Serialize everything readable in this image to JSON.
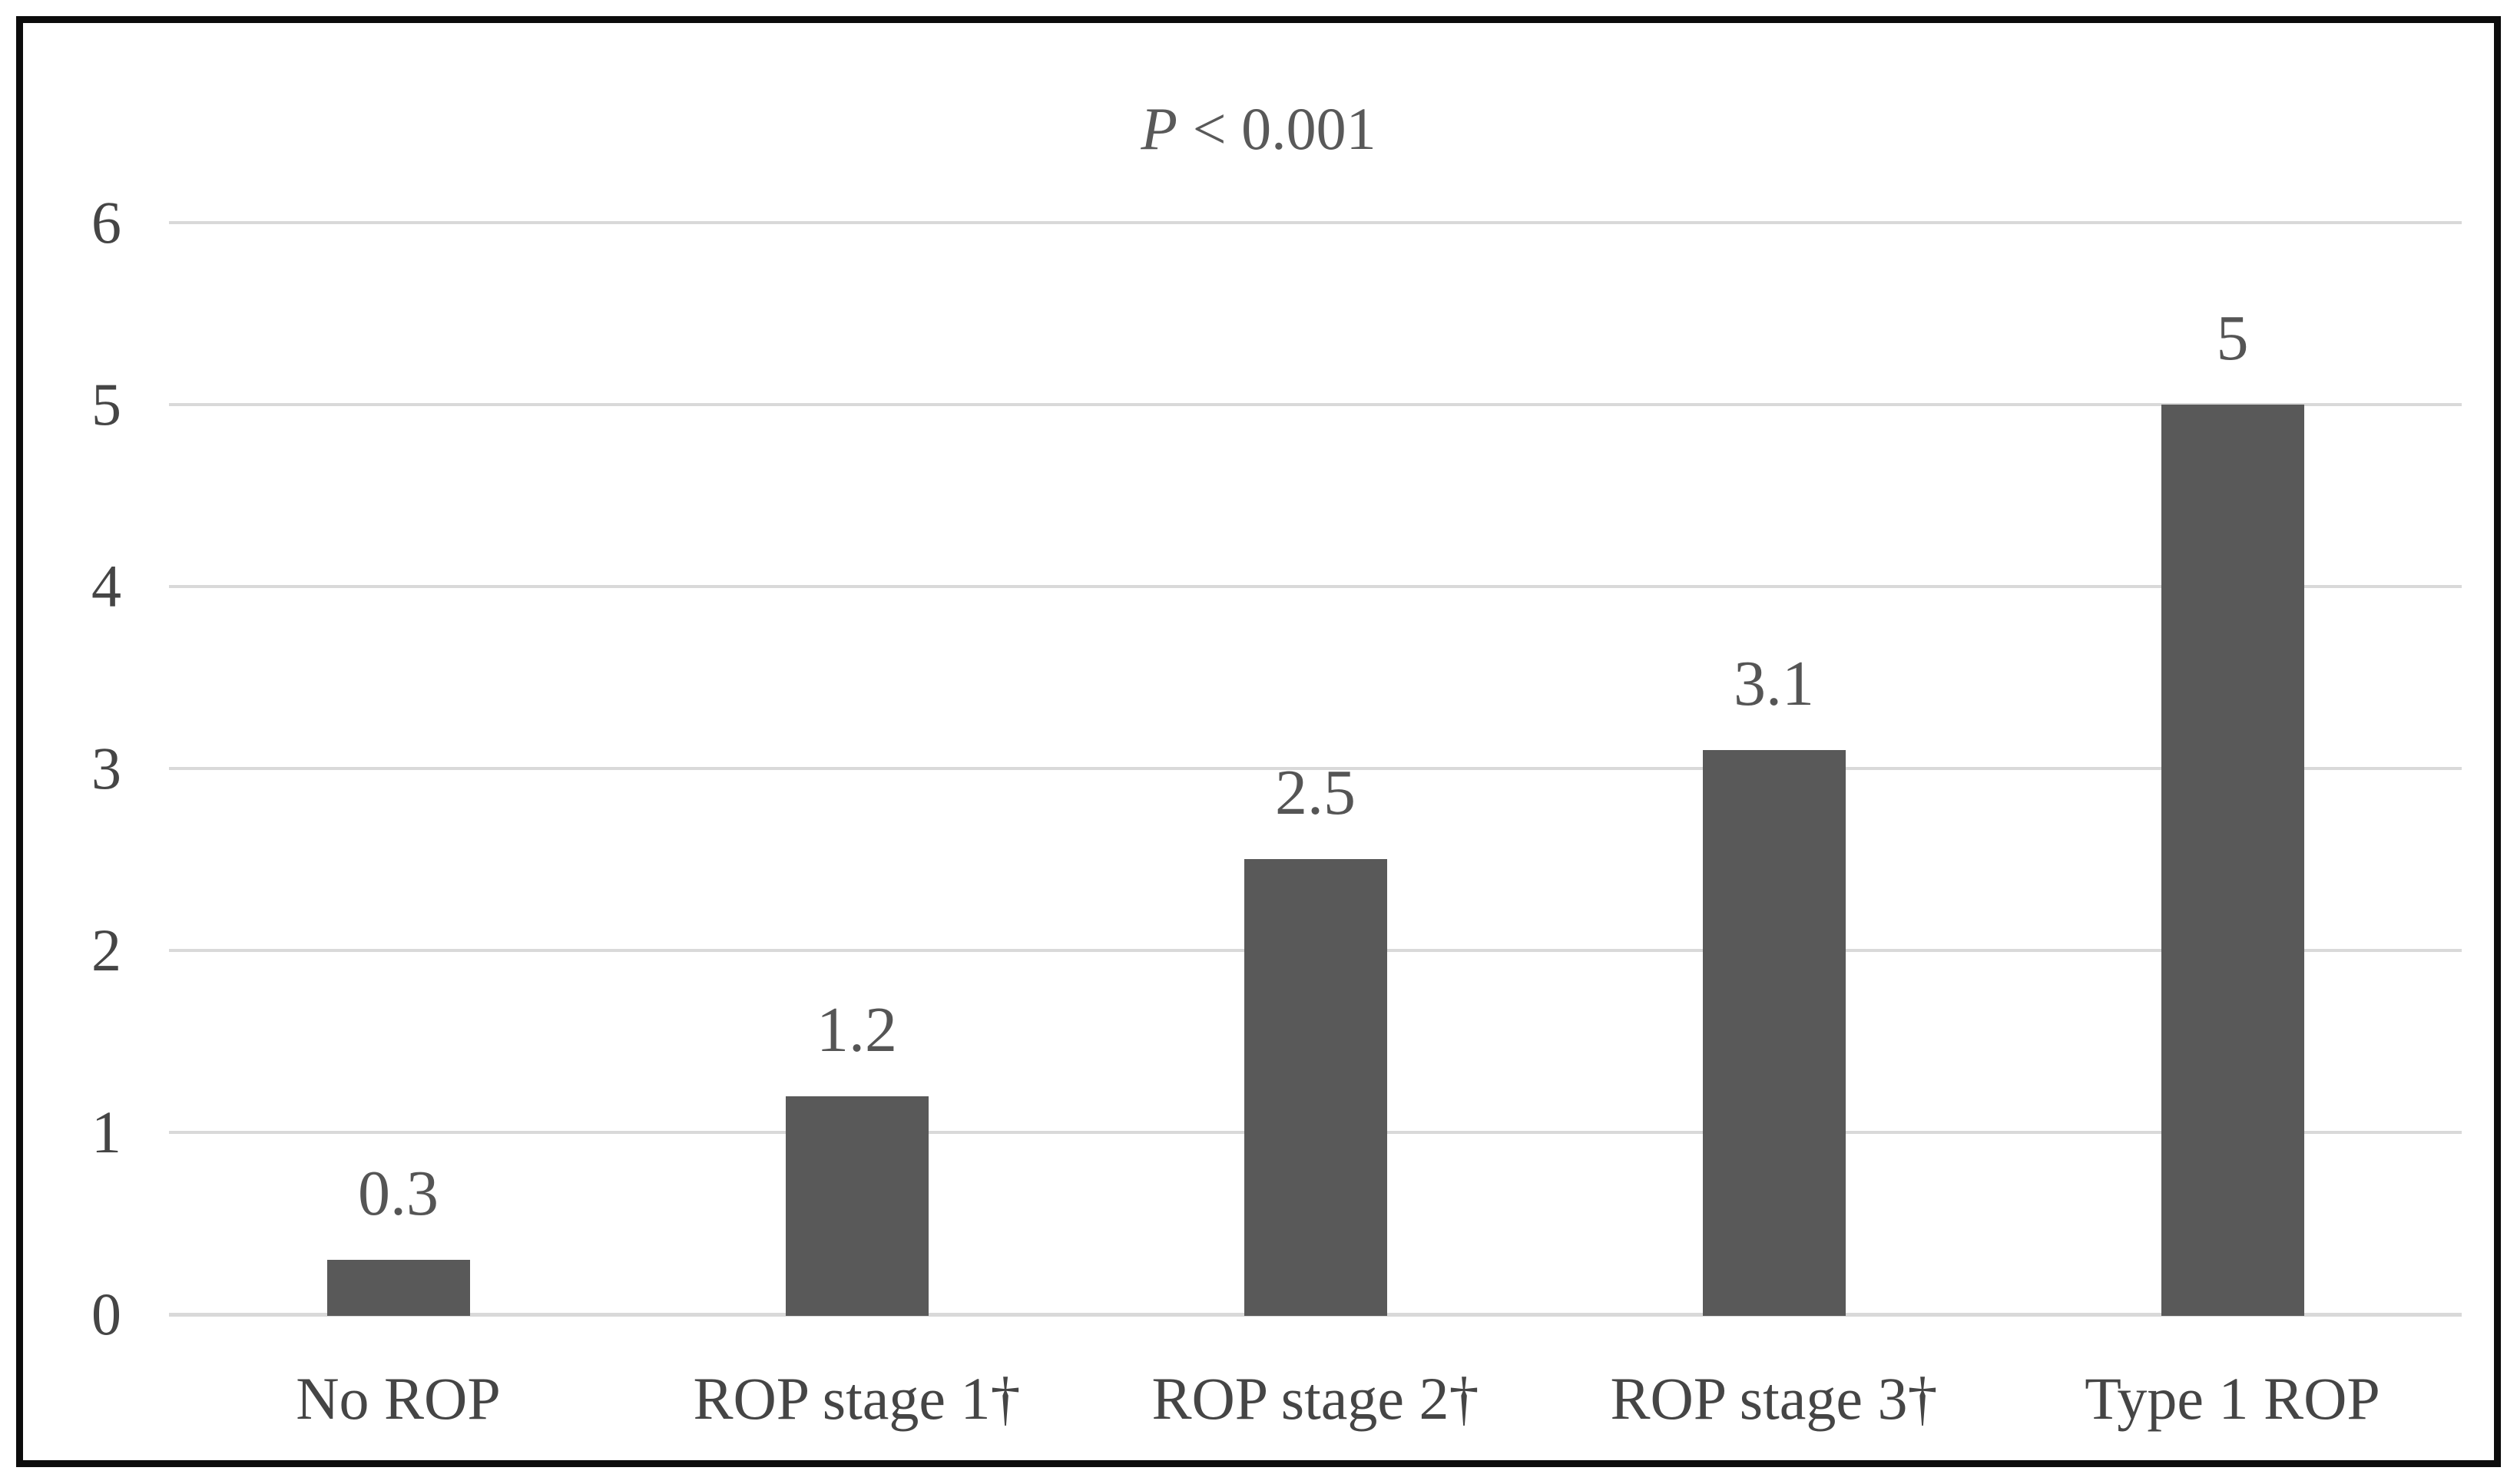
{
  "chart_data": {
    "type": "bar",
    "title": "P < 0.001",
    "title_italic": "P",
    "title_rest": " < 0.001",
    "categories": [
      "No ROP",
      "ROP stage 1†",
      "ROP stage 2†",
      "ROP stage 3†",
      "Type 1 ROP"
    ],
    "values": [
      0.3,
      1.2,
      2.5,
      3.1,
      5
    ],
    "value_labels": [
      "0.3",
      "1.2",
      "2.5",
      "3.1",
      "5"
    ],
    "y_ticks": [
      0,
      1,
      2,
      3,
      4,
      5,
      6
    ],
    "ylim": [
      0,
      6
    ],
    "xlabel": "",
    "ylabel": "",
    "grid": true,
    "legend": false,
    "colors": {
      "bar": "#595959",
      "grid": "#d9d9d9",
      "axis_text": "#454545",
      "value_label_text": "#555555",
      "title_text": "#595959",
      "frame": "#0c0c0c",
      "background": "#ffffff"
    }
  }
}
